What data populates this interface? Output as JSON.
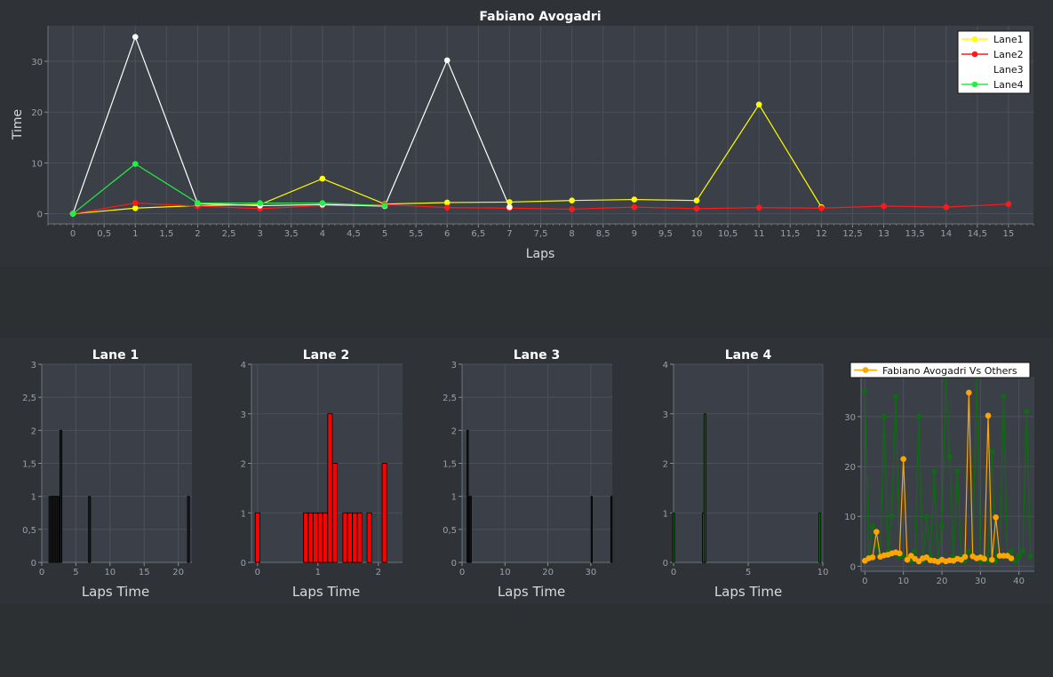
{
  "colors": {
    "plot_bg": "#3b4048",
    "grid": "#4b515a",
    "lane1": "#ffff00",
    "lane2": "#ff1a1a",
    "lane3": "#ffffff",
    "lane4": "#22ee44",
    "others": "#0f6b12",
    "fabiano": "#ffa500"
  },
  "chart_data": [
    {
      "type": "line",
      "title": "Fabiano Avogadri",
      "xlabel": "Laps",
      "ylabel": "Time",
      "xlim": [
        -0.4,
        15.4
      ],
      "ylim": [
        -2,
        37
      ],
      "x_ticks": [
        0,
        0.5,
        1,
        1.5,
        2,
        2.5,
        3,
        3.5,
        4,
        4.5,
        5,
        5.5,
        6,
        6.5,
        7,
        7.5,
        8,
        8.5,
        9,
        9.5,
        10,
        10.5,
        11,
        11.5,
        12,
        12.5,
        13,
        13.5,
        14,
        14.5,
        15
      ],
      "x_tick_labels": [
        "0",
        "0,5",
        "1",
        "1,5",
        "2",
        "2,5",
        "3",
        "3,5",
        "4",
        "4,5",
        "5",
        "5,5",
        "6",
        "6,5",
        "7",
        "7,5",
        "8",
        "8,5",
        "9",
        "9,5",
        "10",
        "10,5",
        "11",
        "11,5",
        "12",
        "12,5",
        "13",
        "13,5",
        "14",
        "14,5",
        "15"
      ],
      "y_ticks": [
        0,
        10,
        20,
        30
      ],
      "legend": "top-right",
      "grid": true,
      "series": [
        {
          "name": "Lane1",
          "color": "#ffff00",
          "x": [
            0,
            1,
            2,
            3,
            4,
            5,
            6,
            7,
            8,
            9,
            10,
            11,
            12
          ],
          "values": [
            0,
            1.1,
            1.6,
            1.8,
            6.9,
            1.9,
            2.2,
            2.3,
            2.6,
            2.8,
            2.6,
            21.5,
            1.3
          ]
        },
        {
          "name": "Lane2",
          "color": "#ff1a1a",
          "x": [
            0,
            1,
            2,
            3,
            4,
            5,
            6,
            7,
            8,
            9,
            10,
            11,
            12,
            13,
            14,
            15
          ],
          "values": [
            0,
            2.1,
            1.5,
            1.0,
            1.6,
            1.8,
            1.2,
            1.1,
            0.9,
            1.3,
            1.0,
            1.2,
            1.1,
            1.5,
            1.3,
            1.9
          ]
        },
        {
          "name": "Lane3",
          "color": "#ffffff",
          "x": [
            0,
            1,
            2,
            3,
            4,
            5,
            6,
            7
          ],
          "values": [
            0,
            34.8,
            2.0,
            1.6,
            1.8,
            1.5,
            30.2,
            1.3
          ]
        },
        {
          "name": "Lane4",
          "color": "#22ee44",
          "x": [
            0,
            1,
            2,
            3,
            4,
            5
          ],
          "values": [
            0,
            9.8,
            2.1,
            2.1,
            2.1,
            1.6
          ]
        }
      ]
    },
    {
      "type": "bar",
      "title": "Lane 1",
      "xlabel": "Laps Time",
      "ylabel": "",
      "xlim": [
        0,
        22
      ],
      "ylim": [
        0,
        3
      ],
      "x_ticks": [
        0,
        5,
        10,
        15,
        20
      ],
      "y_ticks": [
        0,
        0.5,
        1,
        1.5,
        2,
        2.5,
        3
      ],
      "y_tick_labels": [
        "0",
        "0,5",
        "1",
        "1,5",
        "2",
        "2,5",
        "3"
      ],
      "bar_color": "#1a1a1a",
      "bar_width": 0.3,
      "bars": [
        {
          "x": 1.2,
          "h": 1
        },
        {
          "x": 1.5,
          "h": 1
        },
        {
          "x": 1.8,
          "h": 1
        },
        {
          "x": 2.1,
          "h": 1
        },
        {
          "x": 2.4,
          "h": 1
        },
        {
          "x": 2.8,
          "h": 2
        },
        {
          "x": 7,
          "h": 1
        },
        {
          "x": 21.5,
          "h": 1
        }
      ]
    },
    {
      "type": "bar",
      "title": "Lane 2",
      "xlabel": "Laps Time",
      "ylabel": "",
      "xlim": [
        -0.1,
        2.4
      ],
      "ylim": [
        0,
        4
      ],
      "x_ticks": [
        0,
        1,
        2
      ],
      "y_ticks": [
        0,
        1,
        2,
        3,
        4
      ],
      "bar_color": "#ff0000",
      "bar_width": 0.075,
      "bars": [
        {
          "x": 0,
          "h": 1
        },
        {
          "x": 0.8,
          "h": 1
        },
        {
          "x": 0.88,
          "h": 1
        },
        {
          "x": 0.96,
          "h": 1
        },
        {
          "x": 1.04,
          "h": 1
        },
        {
          "x": 1.12,
          "h": 1
        },
        {
          "x": 1.2,
          "h": 3
        },
        {
          "x": 1.28,
          "h": 2
        },
        {
          "x": 1.45,
          "h": 1
        },
        {
          "x": 1.53,
          "h": 1
        },
        {
          "x": 1.61,
          "h": 1
        },
        {
          "x": 1.69,
          "h": 1
        },
        {
          "x": 1.85,
          "h": 1
        },
        {
          "x": 2.1,
          "h": 2
        }
      ]
    },
    {
      "type": "bar",
      "title": "Lane 3",
      "xlabel": "Laps Time",
      "ylabel": "",
      "xlim": [
        0,
        35
      ],
      "ylim": [
        0,
        3
      ],
      "x_ticks": [
        0,
        10,
        20,
        30
      ],
      "y_ticks": [
        0,
        0.5,
        1,
        1.5,
        2,
        2.5,
        3
      ],
      "y_tick_labels": [
        "0",
        "0,5",
        "1",
        "1,5",
        "2",
        "2,5",
        "3"
      ],
      "bar_color": "#1a1a1a",
      "bar_width": 0.3,
      "bars": [
        {
          "x": 1.3,
          "h": 2
        },
        {
          "x": 1.7,
          "h": 1
        },
        {
          "x": 2.0,
          "h": 1
        },
        {
          "x": 30.2,
          "h": 1
        },
        {
          "x": 34.8,
          "h": 1
        }
      ]
    },
    {
      "type": "bar",
      "title": "Lane 4",
      "xlabel": "Laps Time",
      "ylabel": "",
      "xlim": [
        0,
        10
      ],
      "ylim": [
        0,
        4
      ],
      "x_ticks": [
        0,
        5,
        10
      ],
      "y_ticks": [
        0,
        1,
        2,
        3,
        4
      ],
      "bar_color": "#0f6b12",
      "bar_width": 0.12,
      "bars": [
        {
          "x": 0,
          "h": 1
        },
        {
          "x": 2.0,
          "h": 1
        },
        {
          "x": 2.1,
          "h": 3
        },
        {
          "x": 9.8,
          "h": 1
        }
      ]
    },
    {
      "type": "line",
      "title": "",
      "xlabel": "",
      "ylabel": "",
      "xlim": [
        -1,
        44
      ],
      "ylim": [
        -1,
        38
      ],
      "x_ticks": [
        0,
        10,
        20,
        30,
        40
      ],
      "y_ticks": [
        0,
        10,
        20,
        30
      ],
      "legend": "top",
      "series": [
        {
          "name": "",
          "color": "#0f6b12",
          "x": [
            0,
            1,
            2,
            3,
            4,
            5,
            6,
            7,
            8,
            9,
            10,
            11,
            12,
            13,
            14,
            15,
            16,
            17,
            18,
            19,
            20,
            21,
            22,
            23,
            24,
            25,
            26,
            27,
            28,
            29,
            30,
            31,
            32,
            33,
            34,
            35,
            36,
            37,
            38,
            39,
            40,
            41,
            42,
            43
          ],
          "values": [
            35,
            2,
            8,
            4,
            2,
            30,
            3,
            10,
            34,
            2,
            2,
            2,
            1,
            3,
            30,
            1,
            10,
            2,
            19,
            1,
            8,
            38,
            22,
            2,
            19,
            2,
            1,
            3,
            2,
            38,
            1,
            2,
            1,
            23,
            1,
            2,
            34,
            2,
            3,
            1,
            2,
            3,
            31,
            2
          ]
        },
        {
          "name": "Fabiano Avogadri Vs Others",
          "color": "#ffa500",
          "x": [
            0,
            1,
            2,
            3,
            4,
            5,
            6,
            7,
            8,
            9,
            10,
            11,
            12,
            13,
            14,
            15,
            16,
            17,
            18,
            19,
            20,
            21,
            22,
            23,
            24,
            25,
            26,
            27,
            28,
            29,
            30,
            31,
            32,
            33,
            34,
            35,
            36,
            37,
            38
          ],
          "values": [
            1.1,
            1.6,
            1.8,
            6.9,
            1.9,
            2.2,
            2.3,
            2.6,
            2.8,
            2.6,
            21.5,
            1.3,
            2.1,
            1.5,
            1.0,
            1.6,
            1.8,
            1.2,
            1.1,
            0.9,
            1.3,
            1.0,
            1.2,
            1.1,
            1.5,
            1.3,
            1.9,
            34.8,
            2.0,
            1.6,
            1.8,
            1.5,
            30.2,
            1.3,
            9.8,
            2.1,
            2.1,
            2.1,
            1.6
          ]
        }
      ]
    }
  ]
}
